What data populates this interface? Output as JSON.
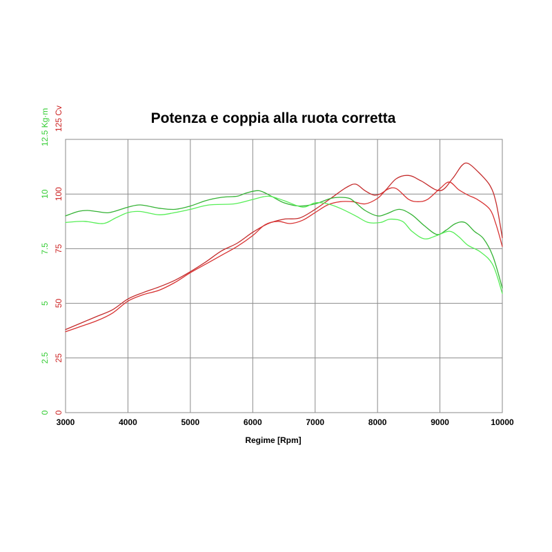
{
  "chart_data": {
    "type": "line",
    "title": "Potenza e coppia alla ruota corretta",
    "xlabel": "Regime [Rpm]",
    "xlim": [
      3000,
      10000
    ],
    "x_ticks": [
      "3000",
      "4000",
      "5000",
      "6000",
      "7000",
      "8000",
      "9000",
      "10000"
    ],
    "y_left_outer": {
      "unit": "12.5 Kg·m",
      "color": "#33cc33",
      "lim": [
        0,
        12.5
      ],
      "ticks": [
        "0",
        "2.5",
        "5",
        "7.5",
        "10"
      ]
    },
    "y_left_inner": {
      "unit": "125 Cv",
      "color": "#cc2222",
      "lim": [
        0,
        125
      ],
      "ticks": [
        "0",
        "25",
        "50",
        "75",
        "100"
      ]
    },
    "grid": true,
    "series": [
      {
        "color": "#c42b2b",
        "axis": "power",
        "points": [
          [
            3000,
            38
          ],
          [
            3250,
            41
          ],
          [
            3500,
            44
          ],
          [
            3750,
            47
          ],
          [
            4000,
            52
          ],
          [
            4250,
            55
          ],
          [
            4500,
            57.5
          ],
          [
            4750,
            60.5
          ],
          [
            5000,
            64.5
          ],
          [
            5250,
            69
          ],
          [
            5500,
            74
          ],
          [
            5750,
            77.5
          ],
          [
            6000,
            82.5
          ],
          [
            6250,
            86.5
          ],
          [
            6500,
            88.5
          ],
          [
            6750,
            89
          ],
          [
            7000,
            93
          ],
          [
            7250,
            98
          ],
          [
            7500,
            103
          ],
          [
            7650,
            104.5
          ],
          [
            7800,
            101.5
          ],
          [
            7950,
            99.5
          ],
          [
            8100,
            101
          ],
          [
            8300,
            107
          ],
          [
            8500,
            108.5
          ],
          [
            8700,
            106
          ],
          [
            9000,
            101.5
          ],
          [
            9200,
            107
          ],
          [
            9350,
            113
          ],
          [
            9450,
            114
          ],
          [
            9600,
            110.5
          ],
          [
            9800,
            104
          ],
          [
            9900,
            96
          ],
          [
            10000,
            80
          ]
        ]
      },
      {
        "color": "#d83232",
        "axis": "power",
        "points": [
          [
            3000,
            37
          ],
          [
            3250,
            39.5
          ],
          [
            3500,
            42
          ],
          [
            3750,
            45.5
          ],
          [
            4000,
            51
          ],
          [
            4250,
            54
          ],
          [
            4500,
            56
          ],
          [
            4750,
            59.5
          ],
          [
            5000,
            64
          ],
          [
            5250,
            68
          ],
          [
            5500,
            72
          ],
          [
            5750,
            76
          ],
          [
            6000,
            81
          ],
          [
            6200,
            86
          ],
          [
            6400,
            87.5
          ],
          [
            6600,
            86.5
          ],
          [
            6800,
            88
          ],
          [
            7000,
            91.5
          ],
          [
            7200,
            95
          ],
          [
            7400,
            96.5
          ],
          [
            7600,
            96.5
          ],
          [
            7800,
            95.5
          ],
          [
            8000,
            98
          ],
          [
            8150,
            102
          ],
          [
            8300,
            102.5
          ],
          [
            8500,
            97.5
          ],
          [
            8650,
            96.5
          ],
          [
            8800,
            97.5
          ],
          [
            9000,
            102.5
          ],
          [
            9150,
            105.5
          ],
          [
            9300,
            102
          ],
          [
            9450,
            99.5
          ],
          [
            9600,
            97.5
          ],
          [
            9800,
            93
          ],
          [
            9900,
            86
          ],
          [
            10000,
            76
          ]
        ]
      },
      {
        "color": "#33b233",
        "axis": "torque",
        "points": [
          [
            3000,
            9.0
          ],
          [
            3200,
            9.2
          ],
          [
            3350,
            9.25
          ],
          [
            3500,
            9.2
          ],
          [
            3700,
            9.15
          ],
          [
            4000,
            9.4
          ],
          [
            4200,
            9.5
          ],
          [
            4500,
            9.35
          ],
          [
            4750,
            9.3
          ],
          [
            5000,
            9.45
          ],
          [
            5250,
            9.7
          ],
          [
            5500,
            9.85
          ],
          [
            5750,
            9.9
          ],
          [
            5900,
            10.05
          ],
          [
            6100,
            10.15
          ],
          [
            6300,
            9.9
          ],
          [
            6500,
            9.6
          ],
          [
            6750,
            9.45
          ],
          [
            7000,
            9.55
          ],
          [
            7250,
            9.8
          ],
          [
            7400,
            9.85
          ],
          [
            7550,
            9.8
          ],
          [
            7650,
            9.6
          ],
          [
            7800,
            9.25
          ],
          [
            8000,
            9.0
          ],
          [
            8150,
            9.1
          ],
          [
            8350,
            9.3
          ],
          [
            8550,
            9.05
          ],
          [
            8750,
            8.55
          ],
          [
            8950,
            8.15
          ],
          [
            9100,
            8.35
          ],
          [
            9250,
            8.65
          ],
          [
            9400,
            8.7
          ],
          [
            9550,
            8.3
          ],
          [
            9700,
            7.95
          ],
          [
            9850,
            7.15
          ],
          [
            10000,
            5.7
          ]
        ]
      },
      {
        "color": "#55ee55",
        "axis": "torque",
        "points": [
          [
            3000,
            8.7
          ],
          [
            3300,
            8.75
          ],
          [
            3600,
            8.65
          ],
          [
            3800,
            8.9
          ],
          [
            4000,
            9.15
          ],
          [
            4200,
            9.2
          ],
          [
            4500,
            9.05
          ],
          [
            4750,
            9.15
          ],
          [
            5000,
            9.3
          ],
          [
            5300,
            9.5
          ],
          [
            5700,
            9.55
          ],
          [
            6000,
            9.75
          ],
          [
            6250,
            9.9
          ],
          [
            6500,
            9.7
          ],
          [
            6800,
            9.4
          ],
          [
            7000,
            9.6
          ],
          [
            7200,
            9.55
          ],
          [
            7400,
            9.35
          ],
          [
            7650,
            9.0
          ],
          [
            7850,
            8.7
          ],
          [
            8050,
            8.7
          ],
          [
            8200,
            8.85
          ],
          [
            8400,
            8.75
          ],
          [
            8550,
            8.3
          ],
          [
            8750,
            7.95
          ],
          [
            8950,
            8.1
          ],
          [
            9150,
            8.3
          ],
          [
            9300,
            8.05
          ],
          [
            9450,
            7.65
          ],
          [
            9650,
            7.35
          ],
          [
            9850,
            6.75
          ],
          [
            10000,
            5.45
          ]
        ]
      }
    ]
  }
}
